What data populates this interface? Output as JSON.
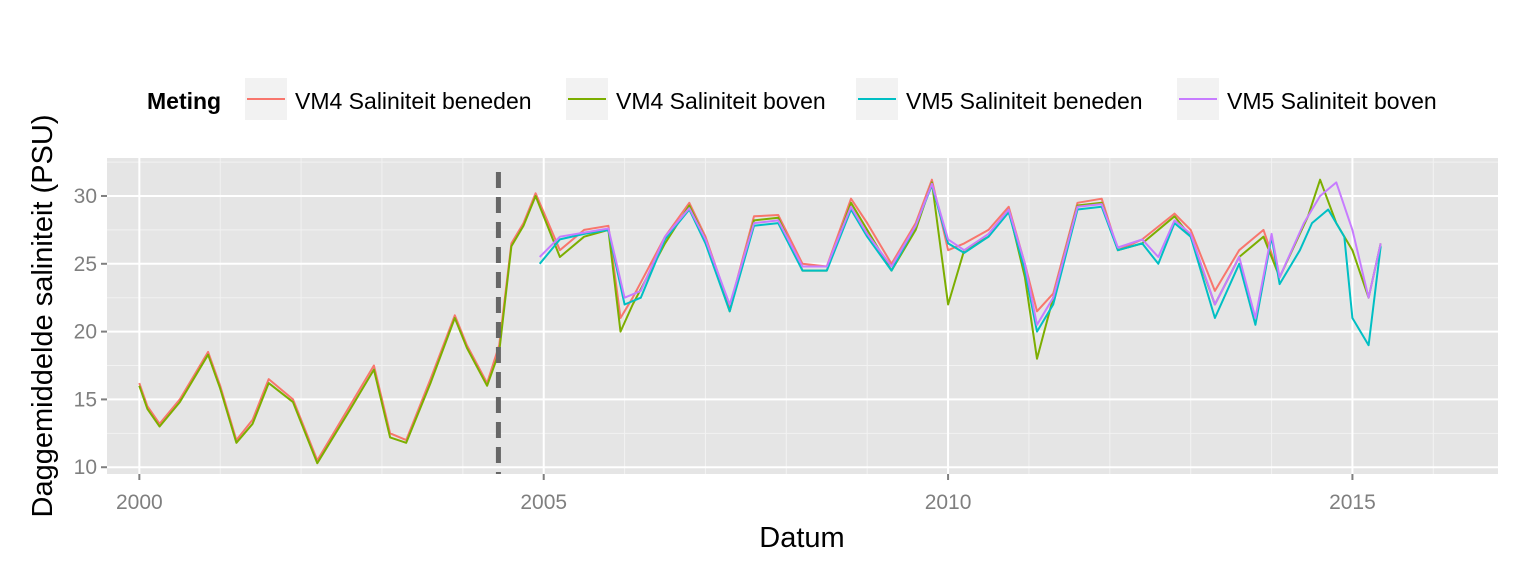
{
  "chart_data": {
    "type": "line",
    "title": "",
    "xlabel": "Datum",
    "ylabel": "Daggemiddelde saliniteit (PSU)",
    "xlim": [
      1999.6,
      2016.8
    ],
    "ylim": [
      9.5,
      32.8
    ],
    "x_ticks": [
      2000,
      2005,
      2010,
      2015
    ],
    "x_tick_labels": [
      "2000",
      "2005",
      "2010",
      "2015"
    ],
    "y_ticks": [
      10,
      15,
      20,
      25,
      30
    ],
    "y_tick_labels": [
      "10",
      "15",
      "20",
      "25",
      "30"
    ],
    "grid": true,
    "legend": {
      "title": "Meting",
      "position": "top"
    },
    "vline": {
      "x": 2004.44,
      "style": "dashed",
      "color": "#666666"
    },
    "series": [
      {
        "name": "VM4 Saliniteit beneden",
        "color": "#F8766D",
        "x": [
          2000.0,
          2000.1,
          2000.25,
          2000.5,
          2000.85,
          2001.0,
          2001.2,
          2001.4,
          2001.6,
          2001.9,
          2002.2,
          2002.6,
          2002.9,
          2003.1,
          2003.3,
          2003.6,
          2003.9,
          2004.05,
          2004.3,
          2004.45,
          2004.6,
          2004.75,
          2004.9,
          2005.2,
          2005.5,
          2005.8,
          2005.95,
          2006.1,
          2006.5,
          2006.8,
          2007.0,
          2007.3,
          2007.6,
          2007.9,
          2008.2,
          2008.5,
          2008.8,
          2009.0,
          2009.3,
          2009.6,
          2009.8,
          2010.0,
          2010.2,
          2010.5,
          2010.75,
          2010.95,
          2011.1,
          2011.3,
          2011.6,
          2011.9,
          2012.1,
          2012.4,
          2012.8,
          2013.0,
          2013.3,
          2013.6,
          2013.9,
          2014.1
        ],
        "y": [
          16.2,
          14.5,
          13.2,
          15.0,
          18.5,
          16.0,
          12.0,
          13.5,
          16.5,
          15.0,
          10.5,
          14.5,
          17.5,
          12.5,
          12.0,
          16.5,
          21.2,
          19.0,
          16.2,
          19.0,
          26.5,
          28.0,
          30.2,
          26.0,
          27.5,
          27.8,
          21.0,
          22.5,
          27.0,
          29.5,
          27.0,
          21.8,
          28.5,
          28.6,
          25.0,
          24.8,
          29.8,
          28.0,
          25.0,
          28.0,
          31.2,
          26.0,
          26.5,
          27.5,
          29.2,
          25.0,
          21.5,
          22.8,
          29.5,
          29.8,
          26.0,
          26.8,
          28.7,
          27.5,
          23.0,
          26.0,
          27.5,
          24.0
        ]
      },
      {
        "name": "VM4 Saliniteit boven",
        "color": "#7CAE00",
        "x": [
          2000.0,
          2000.1,
          2000.25,
          2000.5,
          2000.85,
          2001.0,
          2001.2,
          2001.4,
          2001.6,
          2001.9,
          2002.2,
          2002.6,
          2002.9,
          2003.1,
          2003.3,
          2003.6,
          2003.9,
          2004.05,
          2004.3,
          2004.45,
          2004.6,
          2004.75,
          2004.9,
          2005.2,
          2005.5,
          2005.8,
          2005.95,
          2006.1,
          2006.5,
          2006.8,
          2007.0,
          2007.3,
          2007.6,
          2007.9,
          2008.2,
          2008.5,
          2008.8,
          2009.0,
          2009.3,
          2009.6,
          2009.8,
          2010.0,
          2010.2,
          2010.5,
          2010.75,
          2010.95,
          2011.1,
          2011.3,
          2011.6,
          2011.9,
          2012.1,
          2012.4,
          2012.8,
          2013.0,
          2013.3,
          2013.6,
          2013.9,
          2014.1,
          2014.45,
          2014.6,
          2014.8,
          2015.0,
          2015.2,
          2015.35
        ],
        "y": [
          16.0,
          14.3,
          13.0,
          14.8,
          18.3,
          15.8,
          11.8,
          13.2,
          16.2,
          14.8,
          10.3,
          14.2,
          17.2,
          12.2,
          11.8,
          16.2,
          21.0,
          18.8,
          16.0,
          18.5,
          26.3,
          27.8,
          30.0,
          25.5,
          27.0,
          27.5,
          20.0,
          22.0,
          26.5,
          29.3,
          26.8,
          21.5,
          28.2,
          28.4,
          24.5,
          24.5,
          29.5,
          27.5,
          24.5,
          27.5,
          31.0,
          22.0,
          26.0,
          27.0,
          29.0,
          24.0,
          18.0,
          22.5,
          29.3,
          29.5,
          26.0,
          26.5,
          28.5,
          27.0,
          22.0,
          25.5,
          27.0,
          24.0,
          28.5,
          31.2,
          28.0,
          26.0,
          22.5,
          26.5
        ]
      },
      {
        "name": "VM5 Saliniteit beneden",
        "color": "#00BFC4",
        "x": [
          2004.95,
          2005.2,
          2005.5,
          2005.8,
          2006.0,
          2006.2,
          2006.5,
          2006.8,
          2007.0,
          2007.3,
          2007.6,
          2007.9,
          2008.2,
          2008.5,
          2008.8,
          2009.0,
          2009.3,
          2009.6,
          2009.8,
          2010.0,
          2010.2,
          2010.5,
          2010.75,
          2010.95,
          2011.1,
          2011.3,
          2011.6,
          2011.9,
          2012.1,
          2012.4,
          2012.6,
          2012.8,
          2013.0,
          2013.3,
          2013.6,
          2013.8,
          2014.0,
          2014.1,
          2014.35,
          2014.5,
          2014.7,
          2014.9,
          2015.0,
          2015.2,
          2015.35
        ],
        "y": [
          25.0,
          26.8,
          27.2,
          27.5,
          22.0,
          22.5,
          26.8,
          29.0,
          26.5,
          21.5,
          27.8,
          28.0,
          24.5,
          24.5,
          29.0,
          27.0,
          24.5,
          27.8,
          30.8,
          26.5,
          25.8,
          27.0,
          28.8,
          24.5,
          20.0,
          22.0,
          29.0,
          29.2,
          26.0,
          26.5,
          25.0,
          28.0,
          27.0,
          21.0,
          25.0,
          20.5,
          27.0,
          23.5,
          26.0,
          28.0,
          29.0,
          27.0,
          21.0,
          19.0,
          26.3
        ]
      },
      {
        "name": "VM5 Saliniteit boven",
        "color": "#C77CFF",
        "x": [
          2004.95,
          2005.2,
          2005.5,
          2005.8,
          2006.0,
          2006.2,
          2006.5,
          2006.8,
          2007.0,
          2007.3,
          2007.6,
          2007.9,
          2008.2,
          2008.5,
          2008.8,
          2009.0,
          2009.3,
          2009.6,
          2009.8,
          2010.0,
          2010.2,
          2010.5,
          2010.75,
          2010.95,
          2011.1,
          2011.3,
          2011.6,
          2011.9,
          2012.1,
          2012.4,
          2012.6,
          2012.8,
          2013.0,
          2013.3,
          2013.6,
          2013.8,
          2014.0,
          2014.1,
          2014.4,
          2014.6,
          2014.8,
          2015.0,
          2015.2,
          2015.35
        ],
        "y": [
          25.5,
          27.0,
          27.3,
          27.6,
          22.5,
          23.0,
          27.0,
          29.1,
          26.8,
          22.0,
          28.0,
          28.2,
          24.8,
          24.8,
          29.2,
          27.2,
          24.8,
          27.8,
          30.9,
          26.8,
          26.0,
          27.2,
          29.0,
          25.0,
          20.5,
          22.5,
          29.2,
          29.4,
          26.2,
          26.8,
          25.5,
          28.2,
          27.2,
          22.0,
          25.5,
          21.0,
          27.2,
          24.0,
          28.0,
          30.0,
          31.0,
          27.5,
          22.5,
          26.5
        ]
      }
    ]
  }
}
